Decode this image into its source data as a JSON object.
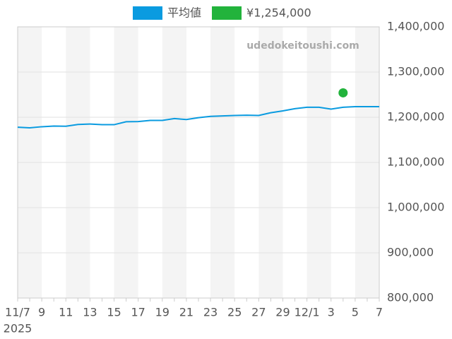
{
  "chart_data": {
    "type": "line",
    "categories": [
      "11/7",
      null,
      "9",
      null,
      "11",
      null,
      "13",
      null,
      "15",
      null,
      "17",
      null,
      "19",
      null,
      "21",
      null,
      "23",
      null,
      "25",
      null,
      "27",
      null,
      "29",
      null,
      "12/1",
      null,
      "3",
      null,
      "5",
      null,
      "7"
    ],
    "x_sub_label": "2025",
    "watermark": "udedokeitoushi.com",
    "series": [
      {
        "name": "平均値",
        "color": "#0a9be0",
        "kind": "line",
        "values": [
          1178000,
          1176500,
          1179000,
          1180500,
          1180000,
          1184000,
          1185000,
          1183500,
          1183500,
          1190000,
          1190500,
          1193000,
          1193000,
          1197000,
          1195000,
          1199000,
          1202000,
          1203000,
          1204000,
          1204500,
          1204000,
          1210000,
          1214000,
          1219000,
          1222000,
          1222000,
          1218000,
          1222000,
          1223500,
          1223500,
          1223500
        ]
      },
      {
        "name": "¥1,254,000",
        "color": "#22b33c",
        "kind": "point",
        "values": [
          null,
          null,
          null,
          null,
          null,
          null,
          null,
          null,
          null,
          null,
          null,
          null,
          null,
          null,
          null,
          null,
          null,
          null,
          null,
          null,
          null,
          null,
          null,
          null,
          null,
          null,
          null,
          1254000,
          null,
          null,
          null
        ]
      }
    ],
    "ylim": [
      800000,
      1400000
    ],
    "yticks": [
      {
        "value": 800000,
        "label": "800,000"
      },
      {
        "value": 900000,
        "label": "900,000"
      },
      {
        "value": 1000000,
        "label": "1,000,000"
      },
      {
        "value": 1100000,
        "label": "1,100,000"
      },
      {
        "value": 1200000,
        "label": "1,200,000"
      },
      {
        "value": 1300000,
        "label": "1,300,000"
      },
      {
        "value": 1400000,
        "label": "1,400,000"
      }
    ],
    "grid": true,
    "legend": "top"
  }
}
